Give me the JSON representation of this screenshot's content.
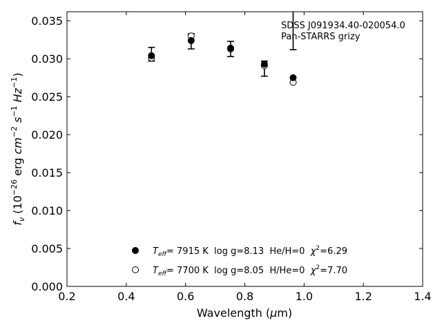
{
  "chart_data": {
    "type": "scatter",
    "xlabel_main": "Wavelength (",
    "xlabel_mu": "μ",
    "xlabel_unit": "m)",
    "ylabel": "f_ν (10^-26 erg cm^-2 s^-1 Hz^-1)",
    "xlim": [
      0.2,
      1.4
    ],
    "ylim": [
      0.0,
      0.0362
    ],
    "x_ticks": [
      0.2,
      0.4,
      0.6,
      0.8,
      1.0,
      1.2,
      1.4
    ],
    "x_tick_labels": [
      "0.2",
      "0.4",
      "0.6",
      "0.8",
      "1.0",
      "1.2",
      "1.4"
    ],
    "y_ticks": [
      0.0,
      0.005,
      0.01,
      0.015,
      0.02,
      0.025,
      0.03,
      0.035
    ],
    "y_tick_labels": [
      "0.000",
      "0.005",
      "0.010",
      "0.015",
      "0.020",
      "0.025",
      "0.030",
      "0.035"
    ],
    "grid": false,
    "annotation": {
      "line1": "SDSS J091934.40-020054.0",
      "line2": "Pan-STARRS grizy"
    },
    "observed": {
      "x": [
        0.485,
        0.619,
        0.752,
        0.866,
        0.963
      ],
      "y": [
        0.0306,
        0.0323,
        0.0313,
        0.0287,
        null
      ],
      "yerr": [
        0.0009,
        0.001,
        0.001,
        0.001,
        0.0025
      ]
    },
    "series": [
      {
        "marker": "filled",
        "x": [
          0.485,
          0.619,
          0.752,
          0.866,
          0.963
        ],
        "y": [
          0.0304,
          0.0324,
          0.0314,
          0.0293,
          0.0275
        ],
        "legend": {
          "teff": "7915 K",
          "logg": "log g=8.13",
          "comp": "He/H=0",
          "chi2": "=6.29"
        }
      },
      {
        "marker": "open",
        "x": [
          0.485,
          0.619,
          0.752,
          0.866,
          0.963
        ],
        "y": [
          0.0301,
          0.033,
          0.0313,
          0.0291,
          0.0269
        ],
        "legend": {
          "teff": "7700 K",
          "logg": "log g=8.05",
          "comp": "H/He=0",
          "chi2": "=7.70"
        }
      }
    ]
  }
}
